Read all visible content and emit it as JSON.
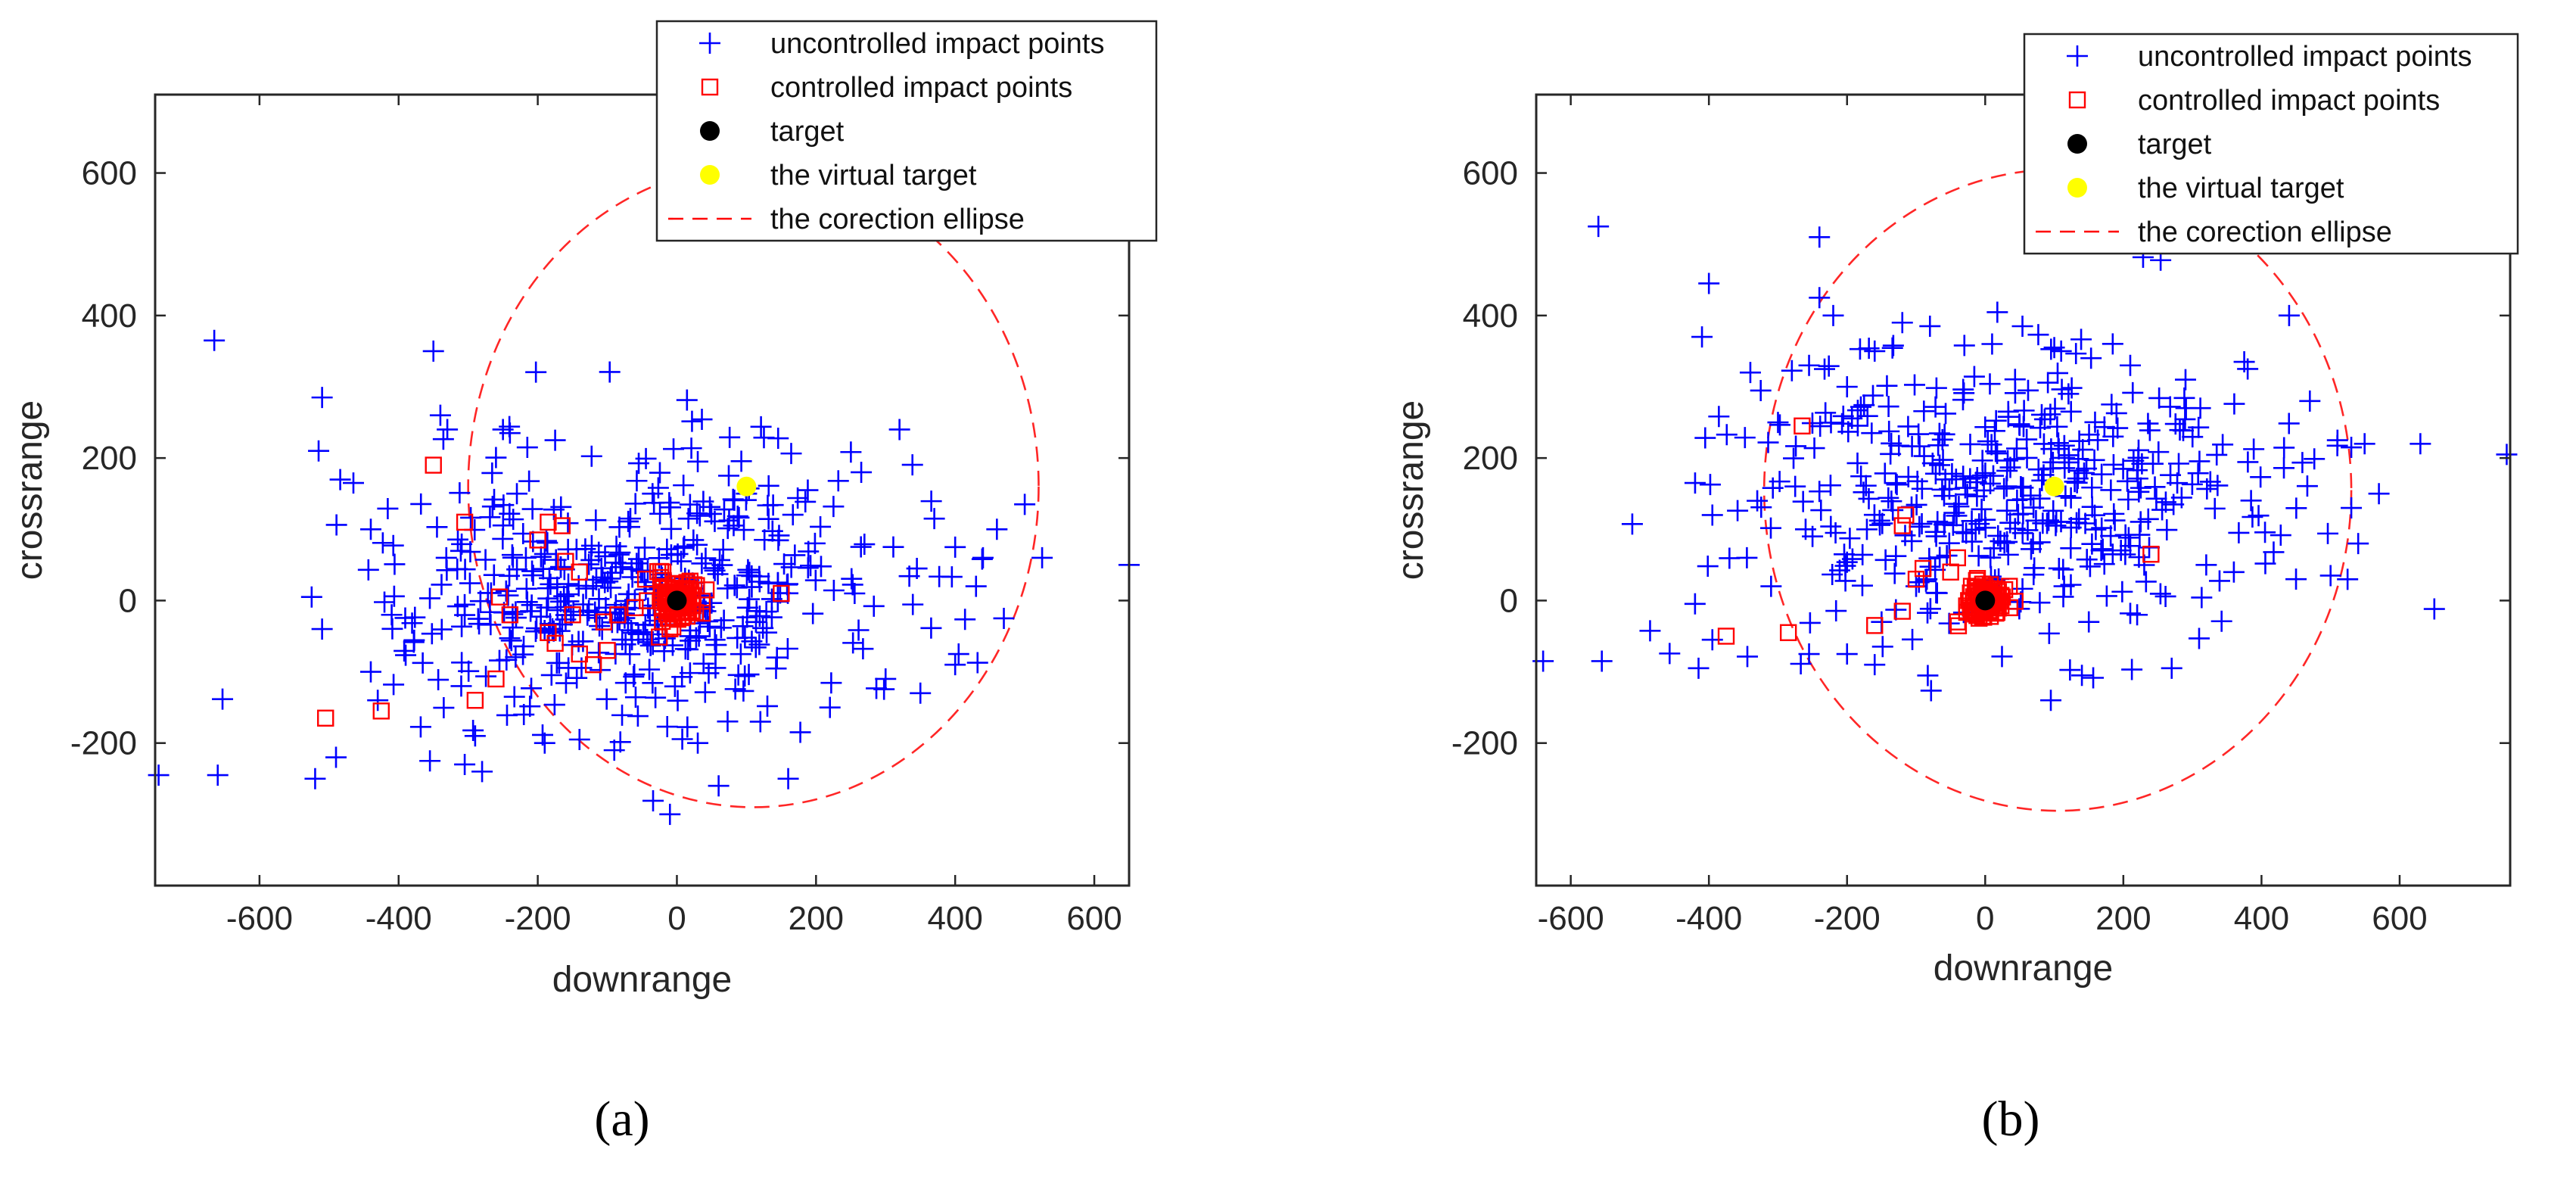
{
  "chart_data": [
    {
      "type": "scatter",
      "panel_label": "(a)",
      "xlabel": "downrange",
      "ylabel": "crossrange",
      "xlim": [
        -750,
        650
      ],
      "ylim": [
        -400,
        710
      ],
      "xticks": [
        -600,
        -400,
        -200,
        0,
        200,
        400,
        600
      ],
      "yticks": [
        -200,
        0,
        200,
        400,
        600
      ],
      "xtick_labels": [
        "-600",
        "-400",
        "-200",
        "0",
        "200",
        "400",
        "600"
      ],
      "ytick_labels": [
        "-200",
        "0",
        "200",
        "400",
        "600"
      ],
      "legend_position": "top-right",
      "legend": [
        {
          "label": "uncontrolled impact points",
          "marker": "plus",
          "color": "#0000ff"
        },
        {
          "label": "controlled impact points",
          "marker": "square",
          "color": "#ff0000"
        },
        {
          "label": "target",
          "marker": "dot",
          "color": "#000000"
        },
        {
          "label": "the virtual target",
          "marker": "dot",
          "color": "#ffff00"
        },
        {
          "label": "the corection ellipse",
          "marker": "dashed-line",
          "color": "#ff0000"
        }
      ],
      "target": [
        0,
        0
      ],
      "virtual_target": [
        100,
        160
      ],
      "ellipse": {
        "cx": 110,
        "cy": 160,
        "rx": 410,
        "ry": 450
      },
      "uncontrolled_seed": 7,
      "uncontrolled_count": 460,
      "controlled_seed": 11,
      "controlled_cluster_count": 60,
      "uncontrolled_points": [
        [
          -665,
          365
        ],
        [
          -745,
          -245
        ],
        [
          -660,
          -245
        ],
        [
          -510,
          285
        ],
        [
          -515,
          210
        ],
        [
          -510,
          -40
        ],
        [
          -525,
          5
        ],
        [
          -520,
          -250
        ],
        [
          -490,
          -220
        ],
        [
          -465,
          165
        ],
        [
          -440,
          100
        ],
        [
          -440,
          -100
        ],
        [
          -430,
          -140
        ],
        [
          -410,
          -20
        ],
        [
          -350,
          350
        ],
        [
          -340,
          260
        ],
        [
          -330,
          240
        ],
        [
          -355,
          -225
        ],
        [
          -305,
          -230
        ],
        [
          -280,
          -240
        ],
        [
          -290,
          -190
        ],
        [
          -250,
          240
        ],
        [
          -240,
          235
        ],
        [
          -215,
          215
        ],
        [
          -175,
          225
        ],
        [
          -230,
          150
        ],
        [
          -220,
          -160
        ],
        [
          -190,
          -200
        ],
        [
          -140,
          -195
        ],
        [
          -90,
          -210
        ],
        [
          -35,
          150
        ],
        [
          30,
          -200
        ],
        [
          -10,
          -300
        ],
        [
          30,
          195
        ],
        [
          100,
          150
        ],
        [
          160,
          -250
        ],
        [
          265,
          180
        ],
        [
          320,
          240
        ],
        [
          345,
          45
        ],
        [
          370,
          115
        ],
        [
          400,
          75
        ],
        [
          440,
          60
        ],
        [
          470,
          -25
        ],
        [
          460,
          100
        ],
        [
          430,
          20
        ],
        [
          500,
          135
        ],
        [
          525,
          60
        ],
        [
          650,
          50
        ],
        [
          300,
          -110
        ],
        [
          350,
          -130
        ],
        [
          400,
          -90
        ],
        [
          405,
          -75
        ],
        [
          220,
          -150
        ],
        [
          120,
          -170
        ],
        [
          60,
          -260
        ],
        [
          -310,
          -120
        ]
      ],
      "controlled_points": [
        [
          -505,
          -165
        ],
        [
          -425,
          -155
        ],
        [
          -350,
          190
        ],
        [
          -305,
          110
        ],
        [
          -255,
          5
        ],
        [
          -240,
          -20
        ],
        [
          -260,
          -110
        ],
        [
          -290,
          -140
        ],
        [
          -200,
          85
        ],
        [
          -185,
          110
        ],
        [
          -165,
          105
        ],
        [
          -160,
          55
        ],
        [
          -140,
          40
        ],
        [
          -150,
          -20
        ],
        [
          -175,
          -60
        ],
        [
          -140,
          -75
        ],
        [
          -120,
          -90
        ],
        [
          -100,
          -70
        ],
        [
          -105,
          -30
        ],
        [
          -85,
          -20
        ],
        [
          -60,
          -10
        ],
        [
          -45,
          30
        ],
        [
          -20,
          40
        ],
        [
          150,
          10
        ],
        [
          -185,
          -45
        ]
      ],
      "controlled_cluster_center": [
        0,
        0
      ],
      "controlled_cluster_spread": 30
    },
    {
      "type": "scatter",
      "panel_label": "(b)",
      "xlabel": "downrange",
      "ylabel": "crossrange",
      "xlim": [
        -650,
        760
      ],
      "ylim": [
        -400,
        710
      ],
      "xticks": [
        -600,
        -400,
        -200,
        0,
        200,
        400,
        600
      ],
      "yticks": [
        -200,
        0,
        200,
        400,
        600
      ],
      "xtick_labels": [
        "-600",
        "-400",
        "-200",
        "0",
        "200",
        "400",
        "600"
      ],
      "ytick_labels": [
        "-200",
        "0",
        "200",
        "400",
        "600"
      ],
      "legend_position": "top-right",
      "legend": [
        {
          "label": "uncontrolled impact points",
          "marker": "plus",
          "color": "#0000ff"
        },
        {
          "label": "controlled impact points",
          "marker": "square",
          "color": "#ff0000"
        },
        {
          "label": "target",
          "marker": "dot",
          "color": "#000000"
        },
        {
          "label": "the virtual target",
          "marker": "dot",
          "color": "#ffff00"
        },
        {
          "label": "the corection ellipse",
          "marker": "dashed-line",
          "color": "#ff0000"
        }
      ],
      "target": [
        0,
        0
      ],
      "virtual_target": [
        100,
        160
      ],
      "ellipse": {
        "cx": 105,
        "cy": 155,
        "rx": 425,
        "ry": 450
      },
      "uncontrolled_seed": 23,
      "uncontrolled_count": 430,
      "controlled_seed": 31,
      "controlled_cluster_count": 45,
      "uncontrolled_points": [
        [
          -560,
          525
        ],
        [
          -400,
          445
        ],
        [
          -410,
          370
        ],
        [
          -640,
          -85
        ],
        [
          -555,
          -85
        ],
        [
          -415,
          -95
        ],
        [
          -395,
          -55
        ],
        [
          -420,
          165
        ],
        [
          -395,
          120
        ],
        [
          -240,
          510
        ],
        [
          -240,
          425
        ],
        [
          -220,
          400
        ],
        [
          -255,
          330
        ],
        [
          -340,
          320
        ],
        [
          -300,
          250
        ],
        [
          -330,
          140
        ],
        [
          -345,
          60
        ],
        [
          -310,
          20
        ],
        [
          -260,
          100
        ],
        [
          -250,
          90
        ],
        [
          -255,
          -75
        ],
        [
          -200,
          -75
        ],
        [
          -160,
          -90
        ],
        [
          -150,
          -30
        ],
        [
          -100,
          20
        ],
        [
          10,
          360
        ],
        [
          110,
          350
        ],
        [
          100,
          355
        ],
        [
          210,
          330
        ],
        [
          290,
          310
        ],
        [
          375,
          335
        ],
        [
          380,
          325
        ],
        [
          440,
          400
        ],
        [
          470,
          280
        ],
        [
          510,
          225
        ],
        [
          530,
          215
        ],
        [
          530,
          130
        ],
        [
          540,
          80
        ],
        [
          570,
          150
        ],
        [
          630,
          220
        ],
        [
          755,
          205
        ],
        [
          500,
          35
        ],
        [
          450,
          30
        ],
        [
          360,
          40
        ],
        [
          320,
          50
        ],
        [
          270,
          -95
        ],
        [
          220,
          -20
        ],
        [
          140,
          -105
        ],
        [
          95,
          -140
        ],
        [
          150,
          -30
        ],
        [
          -120,
          390
        ],
        [
          -80,
          385
        ],
        [
          -160,
          350
        ],
        [
          -200,
          300
        ]
      ],
      "controlled_points": [
        [
          -375,
          -50
        ],
        [
          -285,
          -45
        ],
        [
          -265,
          245
        ],
        [
          -115,
          120
        ],
        [
          -120,
          105
        ],
        [
          -100,
          30
        ],
        [
          -120,
          -15
        ],
        [
          -160,
          -35
        ],
        [
          -50,
          40
        ],
        [
          -40,
          60
        ],
        [
          -20,
          20
        ],
        [
          -40,
          -30
        ],
        [
          25,
          5
        ],
        [
          35,
          20
        ],
        [
          240,
          65
        ],
        [
          -90,
          45
        ]
      ],
      "controlled_cluster_center": [
        0,
        0
      ],
      "controlled_cluster_spread": 25
    }
  ]
}
